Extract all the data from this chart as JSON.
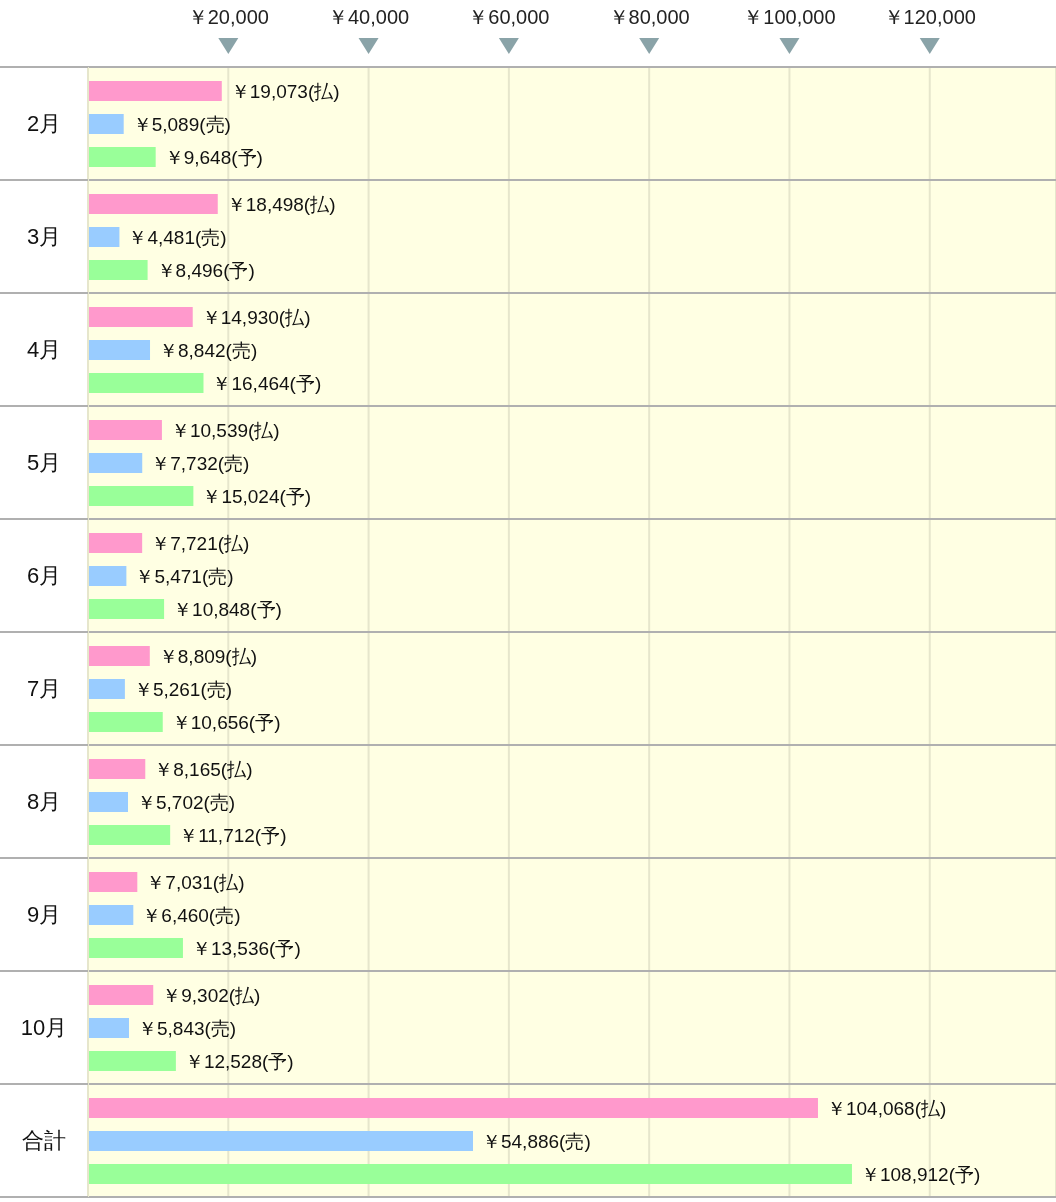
{
  "chart_data": {
    "type": "bar",
    "orientation": "horizontal",
    "categories": [
      "2月",
      "3月",
      "4月",
      "5月",
      "6月",
      "7月",
      "8月",
      "9月",
      "10月",
      "合計"
    ],
    "series": [
      {
        "color": "#ff99cc",
        "values": [
          19073,
          18498,
          14930,
          10539,
          7721,
          8809,
          8165,
          7031,
          9302,
          104068
        ],
        "value_labels": [
          "￥19,073(払)",
          "￥18,498(払)",
          "￥14,930(払)",
          "￥10,539(払)",
          "￥7,721(払)",
          "￥8,809(払)",
          "￥8,165(払)",
          "￥7,031(払)",
          "￥9,302(払)",
          "￥104,068(払)"
        ]
      },
      {
        "color": "#99ccff",
        "values": [
          5089,
          4481,
          8842,
          7732,
          5471,
          5261,
          5702,
          6460,
          5843,
          54886
        ],
        "value_labels": [
          "￥5,089(売)",
          "￥4,481(売)",
          "￥8,842(売)",
          "￥7,732(売)",
          "￥5,471(売)",
          "￥5,261(売)",
          "￥5,702(売)",
          "￥6,460(売)",
          "￥5,843(売)",
          "￥54,886(売)"
        ]
      },
      {
        "color": "#99ff99",
        "values": [
          9648,
          8496,
          16464,
          15024,
          10848,
          10656,
          11712,
          13536,
          12528,
          108912
        ],
        "value_labels": [
          "￥9,648(予)",
          "￥8,496(予)",
          "￥16,464(予)",
          "￥15,024(予)",
          "￥10,848(予)",
          "￥10,656(予)",
          "￥11,712(予)",
          "￥13,536(予)",
          "￥12,528(予)",
          "￥108,912(予)"
        ]
      }
    ],
    "xlim": [
      0,
      138000
    ],
    "xticks": [
      {
        "value": 20000,
        "label": "￥20,000"
      },
      {
        "value": 40000,
        "label": "￥40,000"
      },
      {
        "value": 60000,
        "label": "￥60,000"
      },
      {
        "value": 80000,
        "label": "￥80,000"
      },
      {
        "value": 100000,
        "label": "￥100,000"
      },
      {
        "value": 120000,
        "label": "￥120,000"
      }
    ],
    "grid": true
  }
}
